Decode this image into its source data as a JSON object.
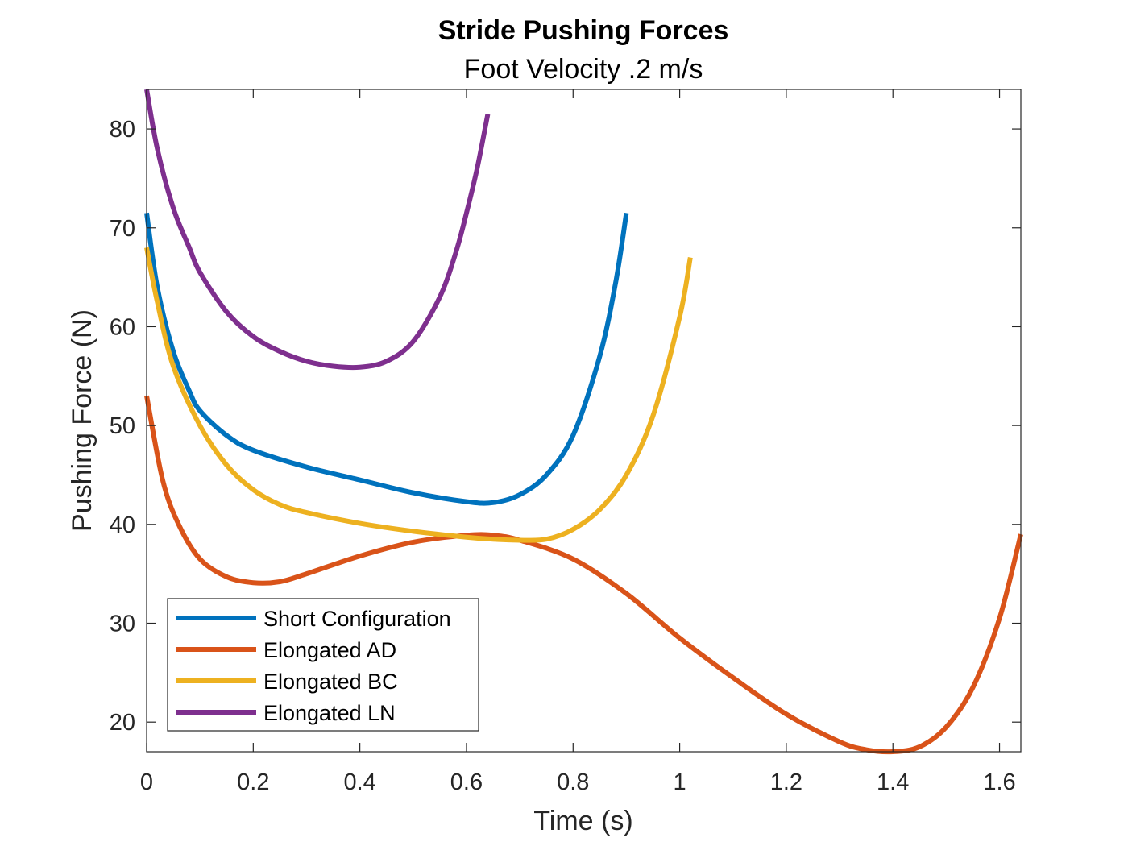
{
  "chart_data": {
    "type": "line",
    "title": "Stride Pushing Forces",
    "subtitle": "Foot Velocity .2 m/s",
    "xlabel": "Time (s)",
    "ylabel": "Pushing Force (N)",
    "xlim": [
      0,
      1.64
    ],
    "ylim": [
      17,
      84
    ],
    "xticks": [
      0,
      0.2,
      0.4,
      0.6,
      0.8,
      1,
      1.2,
      1.4,
      1.6
    ],
    "xtick_labels": [
      "0",
      "0.2",
      "0.4",
      "0.6",
      "0.8",
      "1",
      "1.2",
      "1.4",
      "1.6"
    ],
    "yticks": [
      20,
      30,
      40,
      50,
      60,
      70,
      80
    ],
    "ytick_labels": [
      "20",
      "30",
      "40",
      "50",
      "60",
      "70",
      "80"
    ],
    "grid": false,
    "legend_position": "bottom-left",
    "series": [
      {
        "name": "Short Configuration",
        "color": "#0072BD",
        "x": [
          0,
          0.02,
          0.05,
          0.08,
          0.1,
          0.15,
          0.2,
          0.3,
          0.4,
          0.5,
          0.6,
          0.65,
          0.7,
          0.75,
          0.8,
          0.85,
          0.88,
          0.9
        ],
        "y": [
          71.5,
          64,
          57.5,
          53.5,
          51.5,
          49,
          47.5,
          45.8,
          44.5,
          43.2,
          42.3,
          42.2,
          43,
          45,
          49,
          57,
          64.5,
          71.5
        ]
      },
      {
        "name": "Elongated AD",
        "color": "#D95319",
        "x": [
          0,
          0.03,
          0.06,
          0.1,
          0.15,
          0.2,
          0.25,
          0.3,
          0.4,
          0.5,
          0.6,
          0.65,
          0.7,
          0.8,
          0.9,
          1.0,
          1.1,
          1.2,
          1.3,
          1.35,
          1.4,
          1.45,
          1.5,
          1.55,
          1.6,
          1.64
        ],
        "y": [
          53,
          44.5,
          40,
          36.5,
          34.7,
          34.1,
          34.2,
          35,
          36.8,
          38.2,
          38.9,
          38.9,
          38.4,
          36.5,
          33,
          28.5,
          24.5,
          20.8,
          18,
          17.2,
          17,
          17.5,
          19.5,
          23.5,
          30.5,
          39
        ]
      },
      {
        "name": "Elongated BC",
        "color": "#EDB120",
        "x": [
          0,
          0.02,
          0.05,
          0.1,
          0.15,
          0.2,
          0.25,
          0.3,
          0.4,
          0.5,
          0.6,
          0.65,
          0.7,
          0.75,
          0.8,
          0.85,
          0.9,
          0.95,
          1.0,
          1.02
        ],
        "y": [
          68,
          62.5,
          56,
          50,
          46,
          43.5,
          42,
          41.2,
          40.1,
          39.3,
          38.7,
          38.5,
          38.4,
          38.5,
          39.5,
          41.5,
          45,
          51,
          61,
          67
        ]
      },
      {
        "name": "Elongated LN",
        "color": "#7E2F8E",
        "x": [
          0,
          0.02,
          0.05,
          0.08,
          0.1,
          0.15,
          0.2,
          0.25,
          0.3,
          0.35,
          0.4,
          0.45,
          0.5,
          0.55,
          0.58,
          0.6,
          0.62,
          0.64
        ],
        "y": [
          84,
          78,
          72,
          68,
          65.5,
          61.5,
          59,
          57.5,
          56.5,
          56,
          55.9,
          56.5,
          58.5,
          63,
          67.5,
          71.5,
          76,
          81.5
        ]
      }
    ]
  }
}
